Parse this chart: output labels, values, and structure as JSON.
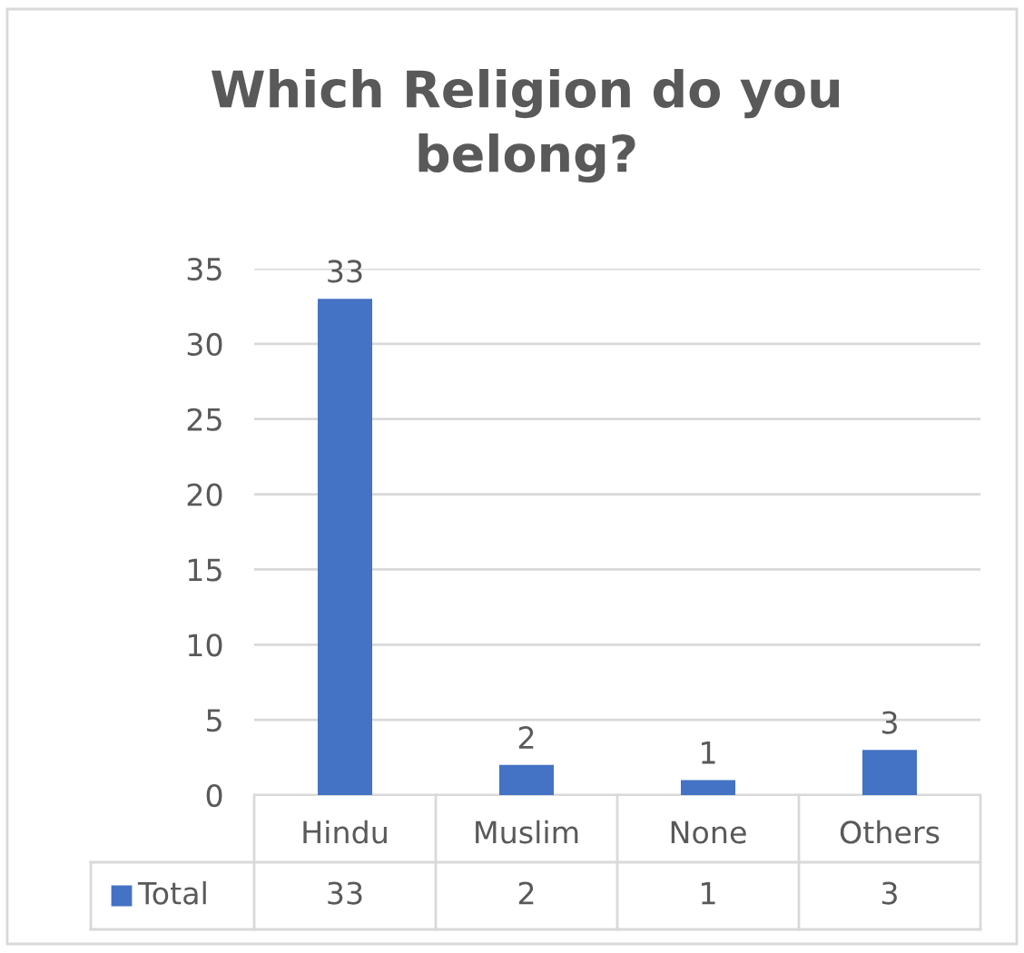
{
  "chart_data": {
    "type": "bar",
    "title": "Which Religion do you belong?",
    "categories": [
      "Hindu",
      "Muslim",
      "None",
      "Others"
    ],
    "series": [
      {
        "name": "Total",
        "color": "#4472c4",
        "values": [
          33,
          2,
          1,
          3
        ]
      }
    ],
    "annotations": [
      {
        "text": "33",
        "x": "Hindu",
        "y": 33
      },
      {
        "text": "2",
        "x": "Muslim",
        "y": 2
      },
      {
        "text": "1",
        "x": "None",
        "y": 1
      },
      {
        "text": "3",
        "x": "Others",
        "y": 3
      }
    ],
    "ylim": [
      0,
      35
    ],
    "yticks": [
      0,
      5,
      10,
      15,
      20,
      25,
      30,
      35
    ],
    "grid": "y",
    "data_labels": true,
    "legend": "bottom"
  }
}
